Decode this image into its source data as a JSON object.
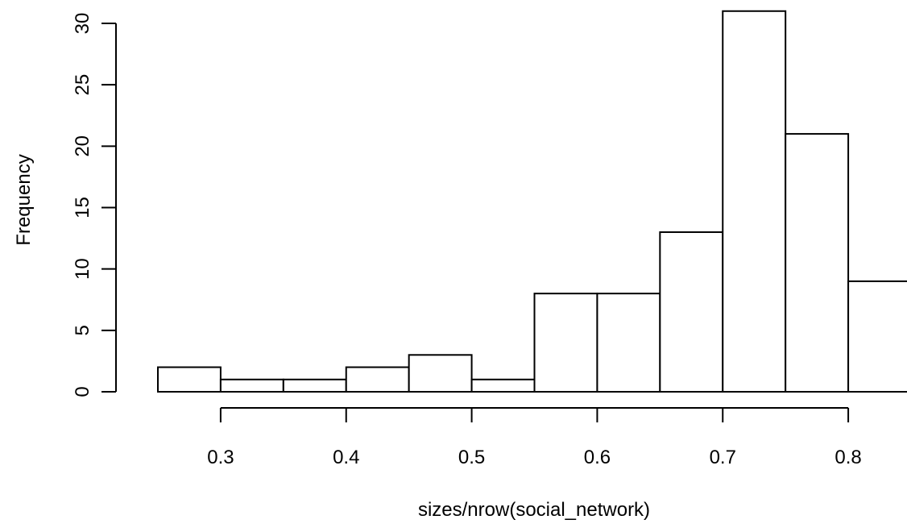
{
  "chart_data": {
    "type": "bar",
    "title": "",
    "xlabel": "sizes/nrow(social_network)",
    "ylabel": "Frequency",
    "bin_edges": [
      0.25,
      0.3,
      0.35,
      0.4,
      0.45,
      0.5,
      0.55,
      0.6,
      0.65,
      0.7,
      0.75,
      0.8,
      0.85
    ],
    "values": [
      2,
      1,
      1,
      2,
      3,
      1,
      8,
      8,
      13,
      31,
      21,
      9
    ],
    "xlim": [
      0.25,
      0.85
    ],
    "ylim": [
      0,
      30
    ],
    "x_ticks": [
      0.3,
      0.4,
      0.5,
      0.6,
      0.7,
      0.8
    ],
    "x_tick_labels": [
      "0.3",
      "0.4",
      "0.5",
      "0.6",
      "0.7",
      "0.8"
    ],
    "y_ticks": [
      0,
      5,
      10,
      15,
      20,
      25,
      30
    ],
    "y_tick_labels": [
      "0",
      "5",
      "10",
      "15",
      "20",
      "25",
      "30"
    ],
    "grid": false,
    "legend": "none",
    "colors": {
      "bar_fill": "#ffffff",
      "bar_stroke": "#000000",
      "axis": "#000000"
    }
  }
}
